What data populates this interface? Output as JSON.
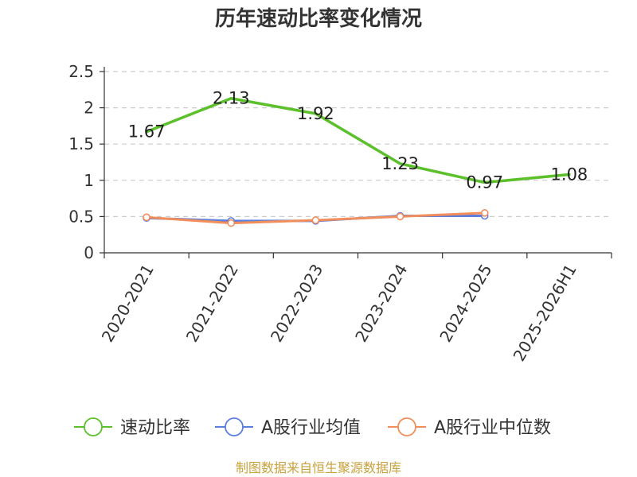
{
  "chart_data": {
    "type": "line",
    "title": "历年速动比率变化情况",
    "categories": [
      "2020-2021",
      "2021-2022",
      "2022-2023",
      "2023-2024",
      "2024-2025",
      "2025-2026H1"
    ],
    "ylim": [
      0,
      2.5
    ],
    "yticks": [
      "0",
      "0.5",
      "1",
      "1.5",
      "2",
      "2.5"
    ],
    "grid": true,
    "legend_position": "bottom",
    "series": [
      {
        "name": "速动比率",
        "color": "#5cc02a",
        "values": [
          1.67,
          2.13,
          1.92,
          1.23,
          0.97,
          1.08
        ],
        "labels": [
          "1.67",
          "2.13",
          "1.92",
          "1.23",
          "0.97",
          "1.08"
        ]
      },
      {
        "name": "A股行业均值",
        "color": "#5b7fdc",
        "values": [
          0.48,
          0.44,
          0.44,
          0.51,
          0.51,
          null
        ]
      },
      {
        "name": "A股行业中位数",
        "color": "#f28e5b",
        "values": [
          0.49,
          0.41,
          0.45,
          0.5,
          0.55,
          null
        ]
      }
    ]
  },
  "footer": {
    "source": "制图数据来自恒生聚源数据库"
  }
}
